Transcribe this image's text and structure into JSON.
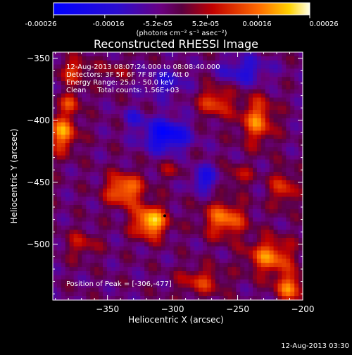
{
  "colorbar": {
    "ticks": [
      "-0.00026",
      "-0.00016",
      "-5.2e-05",
      "5.2e-05",
      "0.00016",
      "0.00026"
    ],
    "unit": "(photons cm⁻² s⁻¹ asec⁻²)",
    "range": [
      -0.00026,
      0.00026
    ]
  },
  "annotations": {
    "time_range": "12-Aug-2013 08:07:24.000 to 08:08:40.000",
    "detectors": "Detectors: 3F 5F 6F 7F 8F 9F, Att 0",
    "energy": "Energy Range: 25.0 - 50.0 keV",
    "clean": "Clean     Total counts: 1.56E+03",
    "peak": "Position of Peak = [-306,-477]"
  },
  "footer_timestamp": "12-Aug-2013 03:30",
  "chart_data": {
    "type": "heatmap",
    "title": "Reconstructed RHESSI Image",
    "xlabel": "Heliocentric X (arcsec)",
    "ylabel": "Heliocentric Y (arcsec)",
    "xlim": [
      -392,
      -200
    ],
    "ylim": [
      -545,
      -345
    ],
    "xticks": [
      -350,
      -300,
      -250,
      -200
    ],
    "yticks": [
      -350,
      -400,
      -450,
      -500
    ],
    "peak": [
      -306,
      -477
    ],
    "color_table": "blue-purple-red-yellow-white",
    "blobs": [
      {
        "x": -317,
        "y": -482,
        "v": 0.00026,
        "sx": 9,
        "sy": 9
      },
      {
        "x": -337,
        "y": -456,
        "v": 0.00021,
        "sx": 10,
        "sy": 9
      },
      {
        "x": -260,
        "y": -480,
        "v": 0.00019,
        "sx": 11,
        "sy": 10
      },
      {
        "x": -235,
        "y": -400,
        "v": 0.00018,
        "sx": 9,
        "sy": 13
      },
      {
        "x": -385,
        "y": -410,
        "v": 0.0002,
        "sx": 8,
        "sy": 11
      },
      {
        "x": -378,
        "y": -385,
        "v": 0.00012,
        "sx": 6,
        "sy": 6
      },
      {
        "x": -376,
        "y": -360,
        "v": 0.00013,
        "sx": 8,
        "sy": 7
      },
      {
        "x": -267,
        "y": -385,
        "v": 0.00015,
        "sx": 9,
        "sy": 9
      },
      {
        "x": -225,
        "y": -510,
        "v": 0.00019,
        "sx": 12,
        "sy": 10
      },
      {
        "x": -210,
        "y": -535,
        "v": 0.00018,
        "sx": 8,
        "sy": 8
      },
      {
        "x": -278,
        "y": -530,
        "v": 0.00012,
        "sx": 12,
        "sy": 8
      },
      {
        "x": -215,
        "y": -455,
        "v": 0.00013,
        "sx": 7,
        "sy": 10
      },
      {
        "x": -370,
        "y": -500,
        "v": 9e-05,
        "sx": 9,
        "sy": 8
      },
      {
        "x": -250,
        "y": -445,
        "v": 9e-05,
        "sx": 8,
        "sy": 6
      },
      {
        "x": -300,
        "y": -440,
        "v": 6e-05,
        "sx": 8,
        "sy": 6
      },
      {
        "x": -345,
        "y": -360,
        "v": 6e-05,
        "sx": 9,
        "sy": 6
      }
    ],
    "dips": [
      {
        "x": -305,
        "y": -412,
        "v": -0.00022,
        "sx": 12,
        "sy": 9
      },
      {
        "x": -275,
        "y": -447,
        "v": -0.00014,
        "sx": 8,
        "sy": 7
      },
      {
        "x": -245,
        "y": -360,
        "v": -0.00012,
        "sx": 13,
        "sy": 8
      },
      {
        "x": -305,
        "y": -370,
        "v": -0.0001,
        "sx": 11,
        "sy": 8
      },
      {
        "x": -330,
        "y": -398,
        "v": -8e-05,
        "sx": 6,
        "sy": 6
      }
    ]
  }
}
